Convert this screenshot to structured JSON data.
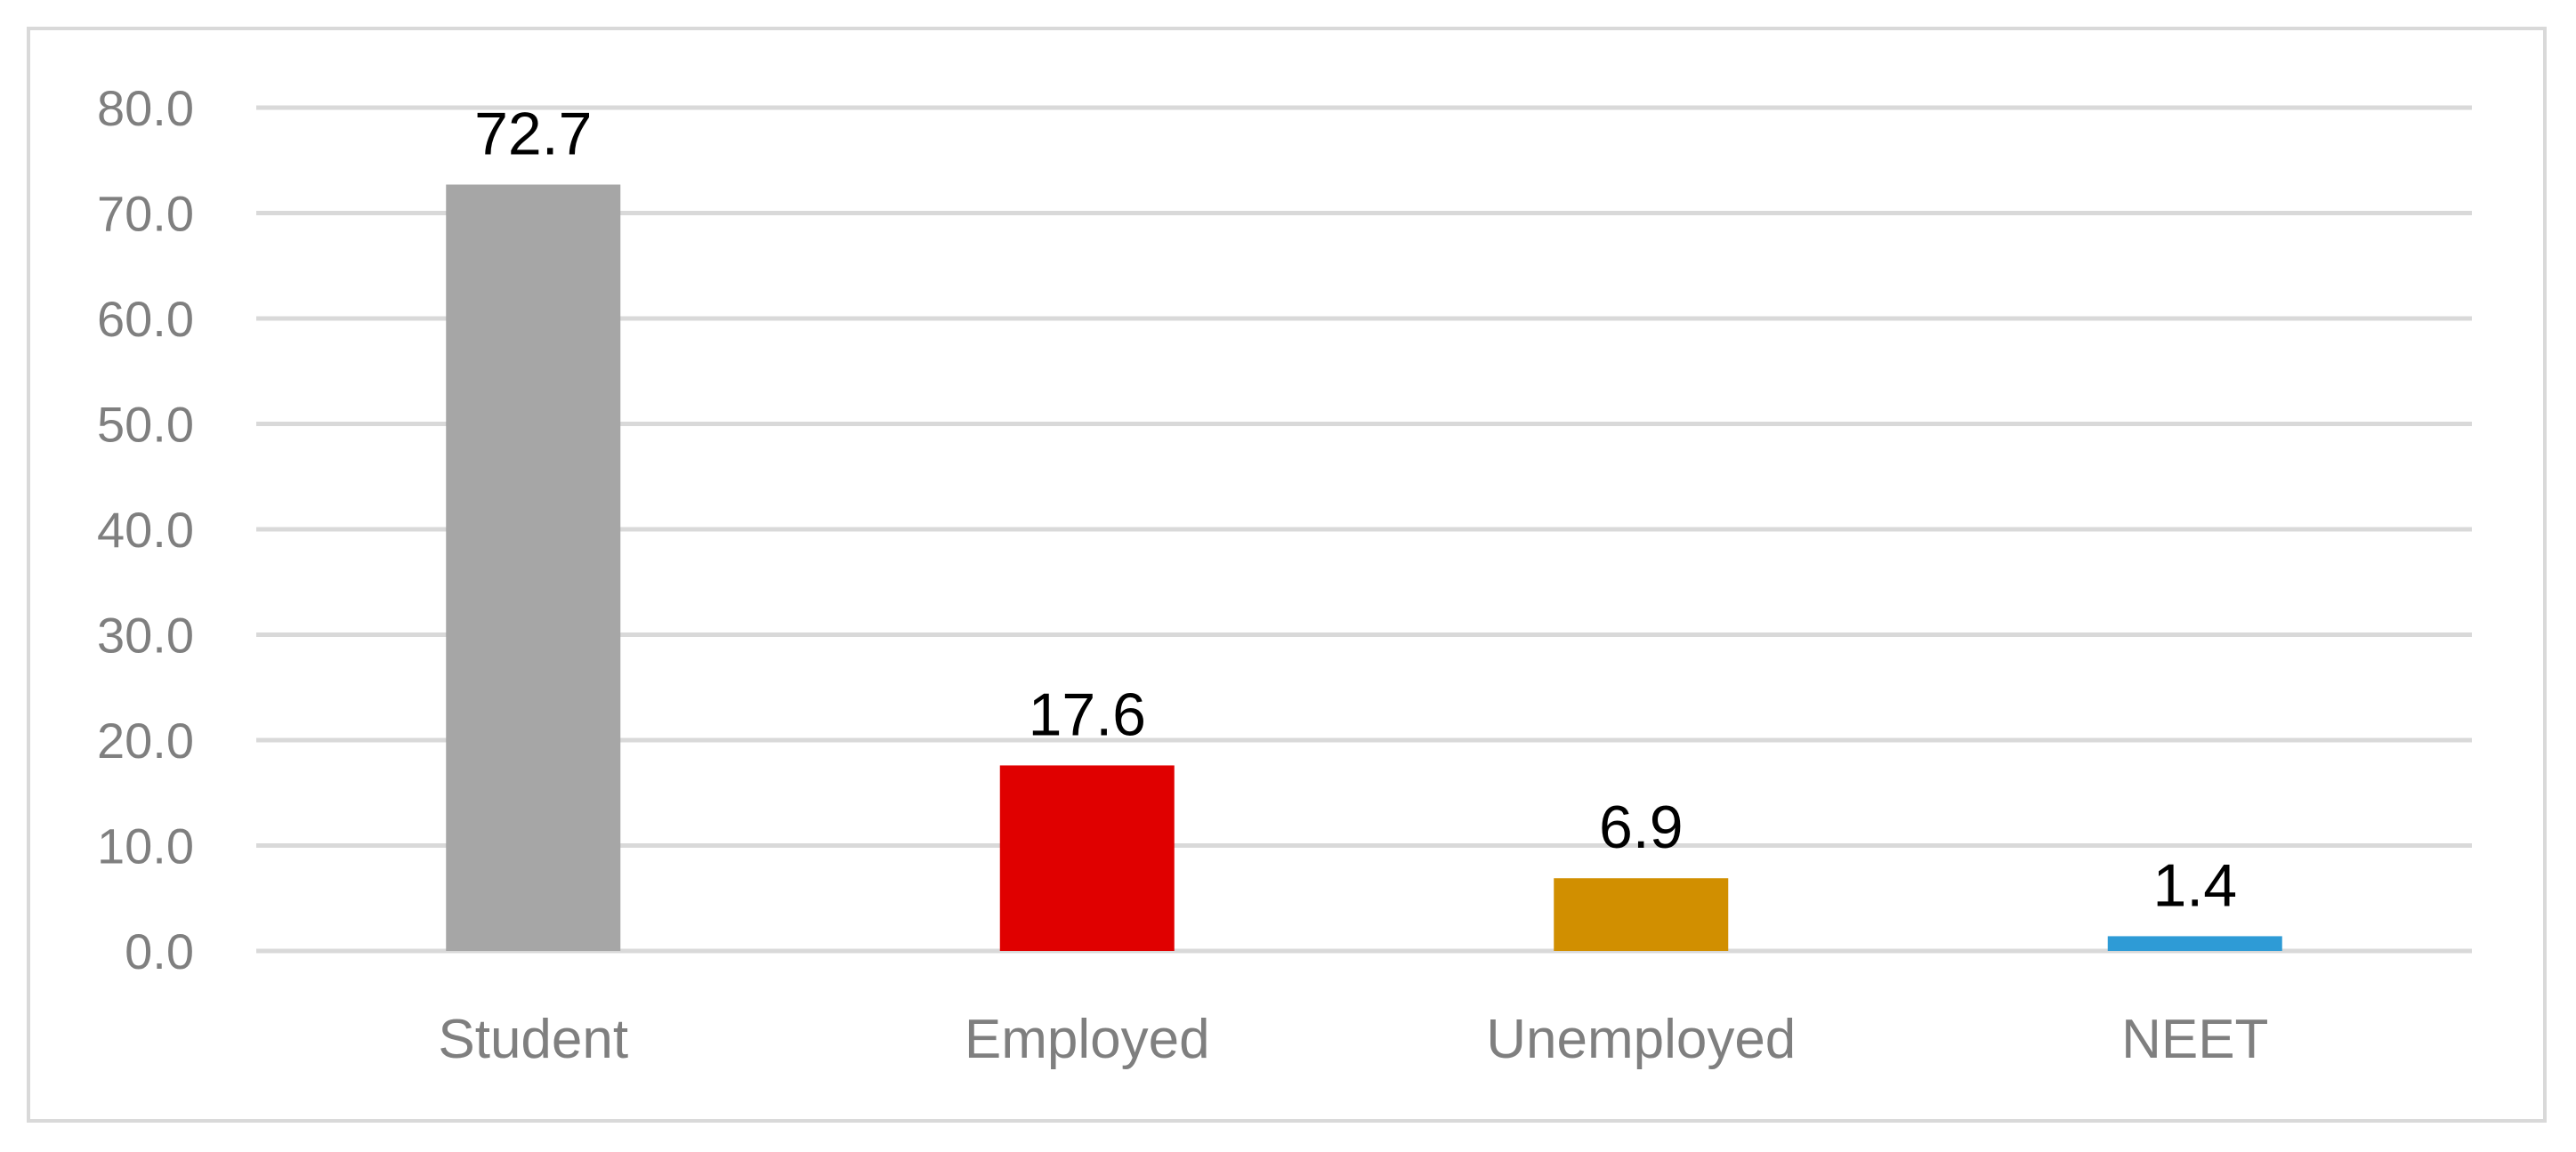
{
  "chart_data": {
    "type": "bar",
    "categories": [
      "Student",
      "Employed",
      "Unemployed",
      "NEET"
    ],
    "values": [
      72.7,
      17.6,
      6.9,
      1.4
    ],
    "value_labels": [
      "72.7",
      "17.6",
      "6.9",
      "1.4"
    ],
    "colors": [
      "#a6a6a6",
      "#e00000",
      "#d18f00",
      "#2e9bd6"
    ],
    "title": "",
    "xlabel": "",
    "ylabel": "",
    "ylim": [
      0,
      80
    ],
    "yticks": [
      0,
      10,
      20,
      30,
      40,
      50,
      60,
      70,
      80
    ],
    "ytick_labels": [
      "0.0",
      "10.0",
      "20.0",
      "30.0",
      "40.0",
      "50.0",
      "60.0",
      "70.0",
      "80.0"
    ],
    "grid": true,
    "legend": "none",
    "grid_color": "#d9d9d9",
    "label_color": "#7f7f7f"
  }
}
